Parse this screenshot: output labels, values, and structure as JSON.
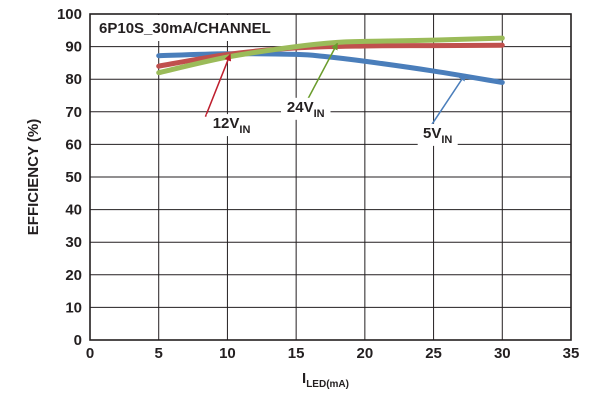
{
  "chart_data": {
    "type": "line",
    "title": "6P10S_30mA/CHANNEL",
    "xlabel": {
      "main": "I",
      "sub": "LED(mA)"
    },
    "ylabel": "EFFICIENCY (%)",
    "xlim": [
      0,
      35
    ],
    "ylim": [
      0,
      100
    ],
    "x_ticks": [
      0,
      5,
      10,
      15,
      20,
      25,
      30,
      35
    ],
    "y_ticks": [
      0,
      10,
      20,
      30,
      40,
      50,
      60,
      70,
      80,
      90,
      100
    ],
    "grid": true,
    "legend": "none",
    "series": [
      {
        "id": "5v",
        "color": "#4a7ebb",
        "x": [
          5,
          10,
          15,
          17,
          20,
          25,
          30
        ],
        "y": [
          87.2,
          87.8,
          87.6,
          87.0,
          85.5,
          82.5,
          79.0
        ]
      },
      {
        "id": "12v",
        "color": "#c0504d",
        "x": [
          5,
          10,
          15,
          20,
          25,
          30
        ],
        "y": [
          84.0,
          87.6,
          89.6,
          90.2,
          90.3,
          90.4
        ]
      },
      {
        "id": "24v",
        "color": "#9bbb59",
        "x": [
          5,
          10,
          15,
          18,
          20,
          25,
          30
        ],
        "y": [
          82.0,
          86.8,
          90.0,
          91.3,
          91.6,
          92.0,
          92.6
        ]
      }
    ],
    "annotations": [
      {
        "series": "12v",
        "main": "12V",
        "sub": "IN",
        "color": "#be1e2d",
        "label_at": [
          10.3,
          65
        ],
        "arrow_from": [
          8.4,
          68.5
        ],
        "arrow_to": [
          10.2,
          87.6
        ]
      },
      {
        "series": "24v",
        "main": "24V",
        "sub": "IN",
        "color": "#6a9c2c",
        "label_at": [
          15.7,
          70
        ],
        "arrow_from": [
          15.8,
          73.5
        ],
        "arrow_to": [
          18.0,
          91.0
        ]
      },
      {
        "series": "5v",
        "main": "5V",
        "sub": "IN",
        "color": "#4a7ebb",
        "label_at": [
          25.3,
          62
        ],
        "arrow_from": [
          24.7,
          65
        ],
        "arrow_to": [
          27.3,
          81.5
        ]
      }
    ]
  }
}
